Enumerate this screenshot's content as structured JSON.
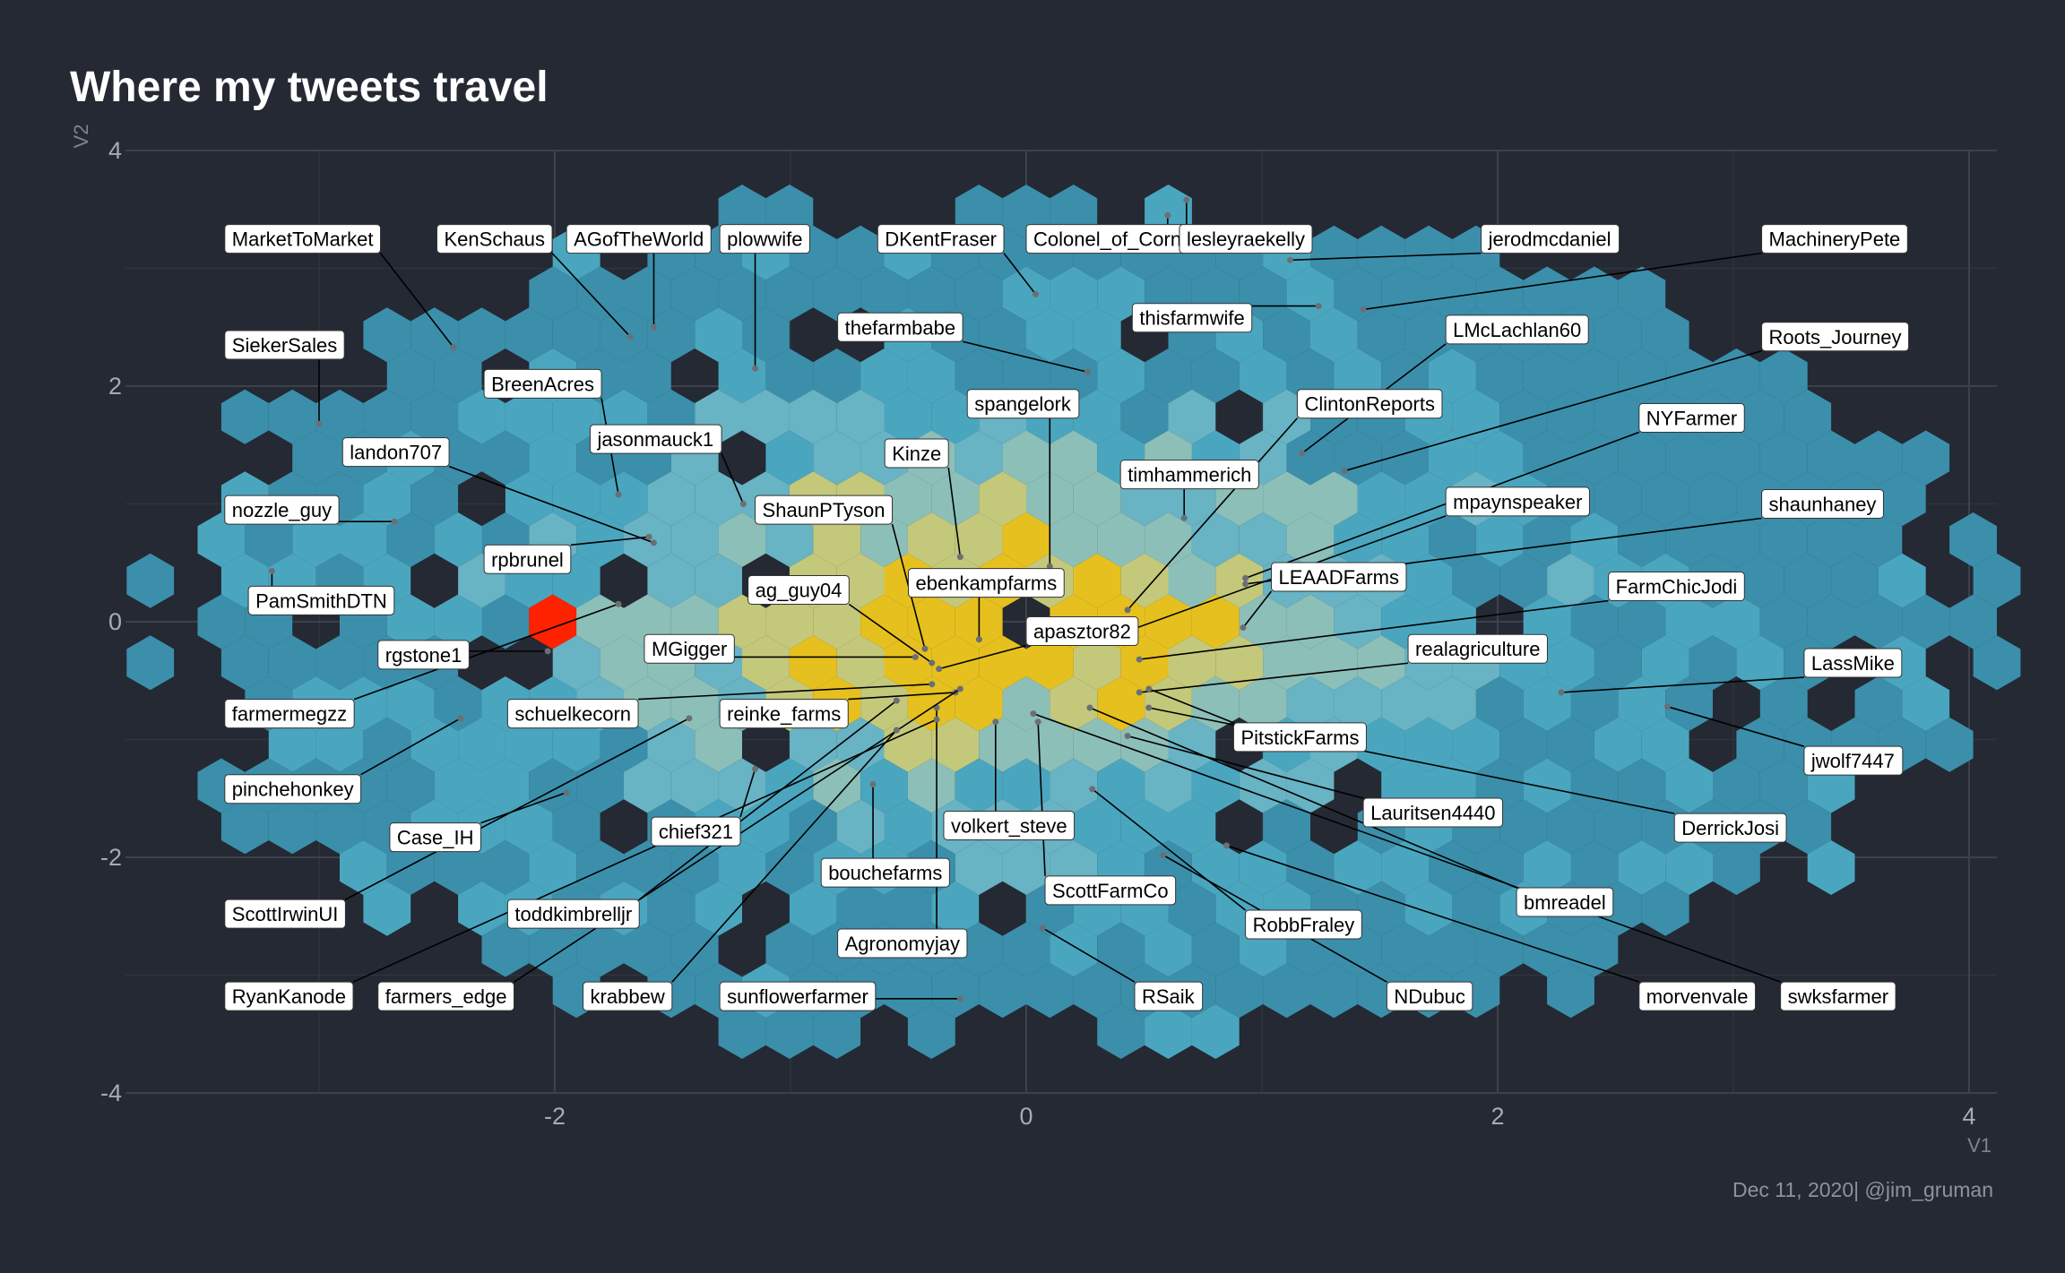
{
  "chart_data": {
    "type": "hexbin",
    "title": "Where my tweets travel",
    "xlabel": "V1",
    "ylabel": "V2",
    "xlim": [
      -4.0,
      4.0
    ],
    "ylim": [
      -4.0,
      4.0
    ],
    "xticks": [
      -2,
      0,
      2,
      4
    ],
    "yticks": [
      -4,
      -2,
      0,
      2,
      4
    ],
    "xtick_labels": [
      "-2",
      "0",
      "2",
      "4"
    ],
    "ytick_labels": [
      "-4",
      "-2",
      "0",
      "2",
      "4"
    ],
    "grid": true,
    "caption": "Dec 11, 2020|  @jim_gruman",
    "density_colors": [
      "#3b8fab",
      "#4aa6bf",
      "#68b3c4",
      "#8cbfb8",
      "#c4c87a",
      "#e6c01e",
      "#ff2200"
    ],
    "density_peak": [
      -1.95,
      0.1
    ],
    "labels": [
      {
        "text": "MarketToMarket",
        "x": -3.4,
        "y": 3.25,
        "px": -2.43,
        "py": 2.33
      },
      {
        "text": "KenSchaus",
        "x": -2.5,
        "y": 3.25,
        "px": -1.68,
        "py": 2.42
      },
      {
        "text": "AGofTheWorld",
        "x": -1.95,
        "y": 3.25,
        "px": -1.58,
        "py": 2.5
      },
      {
        "text": "plowwife",
        "x": -1.3,
        "y": 3.25,
        "px": -1.15,
        "py": 2.15
      },
      {
        "text": "DKentFraser",
        "x": -0.63,
        "y": 3.25,
        "px": 0.04,
        "py": 2.78
      },
      {
        "text": "Colonel_of_Corn",
        "x": 0.0,
        "y": 3.25,
        "px": 0.6,
        "py": 3.45
      },
      {
        "text": "lesleyraekelly",
        "x": 0.65,
        "y": 3.25,
        "px": 0.68,
        "py": 3.58
      },
      {
        "text": "jerodmcdaniel",
        "x": 1.93,
        "y": 3.25,
        "px": 1.12,
        "py": 3.07
      },
      {
        "text": "MachineryPete",
        "x": 3.12,
        "y": 3.25,
        "px": 1.43,
        "py": 2.65
      },
      {
        "text": "SiekerSales",
        "x": -3.4,
        "y": 2.35,
        "px": -3.0,
        "py": 1.68
      },
      {
        "text": "thefarmbabe",
        "x": -0.8,
        "y": 2.5,
        "px": 0.26,
        "py": 2.12
      },
      {
        "text": "thisfarmwife",
        "x": 0.45,
        "y": 2.58,
        "px": 1.24,
        "py": 2.68
      },
      {
        "text": "LMcLachlan60",
        "x": 1.78,
        "y": 2.48,
        "px": 1.17,
        "py": 1.43
      },
      {
        "text": "Roots_Journey",
        "x": 3.12,
        "y": 2.42,
        "px": 1.35,
        "py": 1.28
      },
      {
        "text": "BreenAcres",
        "x": -2.3,
        "y": 2.02,
        "px": -1.73,
        "py": 1.08
      },
      {
        "text": "spangelork",
        "x": -0.25,
        "y": 1.85,
        "px": 0.1,
        "py": 0.47
      },
      {
        "text": "ClintonReports",
        "x": 1.15,
        "y": 1.85,
        "px": 0.43,
        "py": 0.1
      },
      {
        "text": "NYFarmer",
        "x": 2.6,
        "y": 1.73,
        "px": 0.93,
        "py": 0.37
      },
      {
        "text": "landon707",
        "x": -2.9,
        "y": 1.44,
        "px": -1.58,
        "py": 0.67
      },
      {
        "text": "jasonmauck1",
        "x": -1.85,
        "y": 1.55,
        "px": -1.2,
        "py": 1.0
      },
      {
        "text": "Kinze",
        "x": -0.6,
        "y": 1.43,
        "px": -0.28,
        "py": 0.55
      },
      {
        "text": "timhammerich",
        "x": 0.4,
        "y": 1.25,
        "px": 0.67,
        "py": 0.88
      },
      {
        "text": "nozzle_guy",
        "x": -3.4,
        "y": 0.95,
        "px": -2.68,
        "py": 0.85
      },
      {
        "text": "ShaunPTyson",
        "x": -1.15,
        "y": 0.95,
        "px": -0.43,
        "py": -0.23
      },
      {
        "text": "mpaynspeaker",
        "x": 1.78,
        "y": 1.02,
        "px": 0.43,
        "py": -0.08
      },
      {
        "text": "shaunhaney",
        "x": 3.12,
        "y": 1.0,
        "px": 0.93,
        "py": 0.32
      },
      {
        "text": "rpbrunel",
        "x": -2.3,
        "y": 0.53,
        "px": -1.6,
        "py": 0.72
      },
      {
        "text": "ebenkampfarms",
        "x": -0.5,
        "y": 0.33,
        "px": -0.2,
        "py": -0.15
      },
      {
        "text": "LEAADFarms",
        "x": 1.04,
        "y": 0.38,
        "px": 0.92,
        "py": -0.05
      },
      {
        "text": "FarmChicJodi",
        "x": 2.47,
        "y": 0.3,
        "px": 0.48,
        "py": -0.32
      },
      {
        "text": "PamSmithDTN",
        "x": -3.3,
        "y": 0.18,
        "px": -3.2,
        "py": 0.43
      },
      {
        "text": "ag_guy04",
        "x": -1.18,
        "y": 0.27,
        "px": -0.4,
        "py": -0.35
      },
      {
        "text": "apasztor82",
        "x": 0.0,
        "y": -0.08,
        "px": -0.37,
        "py": -0.4
      },
      {
        "text": "rgstone1",
        "x": -2.75,
        "y": -0.28,
        "px": -2.03,
        "py": -0.25
      },
      {
        "text": "MGigger",
        "x": -1.62,
        "y": -0.23,
        "px": -0.47,
        "py": -0.3
      },
      {
        "text": "realagriculture",
        "x": 1.62,
        "y": -0.23,
        "px": 0.48,
        "py": -0.6
      },
      {
        "text": "LassMike",
        "x": 3.3,
        "y": -0.35,
        "px": 2.27,
        "py": -0.6
      },
      {
        "text": "farmermegzz",
        "x": -3.4,
        "y": -0.78,
        "px": -1.73,
        "py": 0.15
      },
      {
        "text": "schuelkecorn",
        "x": -2.2,
        "y": -0.78,
        "px": -0.4,
        "py": -0.53
      },
      {
        "text": "reinke_farms",
        "x": -1.3,
        "y": -0.78,
        "px": -0.3,
        "py": -0.6
      },
      {
        "text": "PitstickFarms",
        "x": 0.88,
        "y": -0.98,
        "px": 0.52,
        "py": -0.57
      },
      {
        "text": "jwolf7447",
        "x": 3.3,
        "y": -1.18,
        "px": 2.72,
        "py": -0.72
      },
      {
        "text": "pinchehonkey",
        "x": -3.4,
        "y": -1.42,
        "px": -2.4,
        "py": -0.82
      },
      {
        "text": "Lauritsen4440",
        "x": 1.43,
        "y": -1.62,
        "px": 0.43,
        "py": -0.97
      },
      {
        "text": "DerrickJosi",
        "x": 2.75,
        "y": -1.75,
        "px": 0.52,
        "py": -0.73
      },
      {
        "text": "Case_IH",
        "x": -2.7,
        "y": -1.83,
        "px": -1.95,
        "py": -1.45
      },
      {
        "text": "chief321",
        "x": -1.59,
        "y": -1.78,
        "px": -1.15,
        "py": -1.25
      },
      {
        "text": "volkert_steve",
        "x": -0.35,
        "y": -1.73,
        "px": -0.13,
        "py": -0.85
      },
      {
        "text": "bouchefarms",
        "x": -0.87,
        "y": -2.13,
        "px": -0.65,
        "py": -1.38
      },
      {
        "text": "ScottFarmCo",
        "x": 0.08,
        "y": -2.28,
        "px": 0.05,
        "py": -0.85
      },
      {
        "text": "bmreadel",
        "x": 2.08,
        "y": -2.38,
        "px": 0.27,
        "py": -0.73
      },
      {
        "text": "ScottIrwinUI",
        "x": -3.4,
        "y": -2.48,
        "px": -1.43,
        "py": -0.82
      },
      {
        "text": "toddkimbrelljr",
        "x": -2.2,
        "y": -2.48,
        "px": -0.55,
        "py": -0.67
      },
      {
        "text": "RobbFraley",
        "x": 0.93,
        "y": -2.57,
        "px": 0.28,
        "py": -1.42
      },
      {
        "text": "Agronomyjay",
        "x": -0.8,
        "y": -2.73,
        "px": -0.38,
        "py": -0.73
      },
      {
        "text": "RyanKanode",
        "x": -3.4,
        "y": -3.18,
        "px": -0.38,
        "py": -0.83
      },
      {
        "text": "farmers_edge",
        "x": -2.75,
        "y": -3.18,
        "px": -0.28,
        "py": -0.57
      },
      {
        "text": "krabbew",
        "x": -1.88,
        "y": -3.18,
        "px": -0.55,
        "py": -0.92
      },
      {
        "text": "sunflowerfarmer",
        "x": -1.3,
        "y": -3.18,
        "px": -0.28,
        "py": -3.2
      },
      {
        "text": "RSaik",
        "x": 0.46,
        "y": -3.18,
        "px": 0.07,
        "py": -2.6
      },
      {
        "text": "NDubuc",
        "x": 1.53,
        "y": -3.18,
        "px": 0.58,
        "py": -1.98
      },
      {
        "text": "morvenvale",
        "x": 2.6,
        "y": -3.18,
        "px": 0.85,
        "py": -1.9
      },
      {
        "text": "swksfarmer",
        "x": 3.2,
        "y": -3.18,
        "px": 0.03,
        "py": -0.78
      }
    ]
  }
}
